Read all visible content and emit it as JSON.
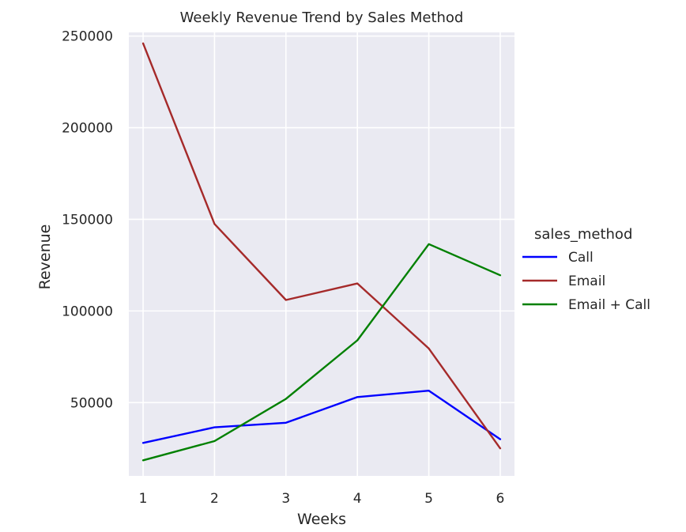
{
  "chart_data": {
    "type": "line",
    "title": "Weekly Revenue Trend by Sales Method",
    "xlabel": "Weeks",
    "ylabel": "Revenue",
    "x": [
      1,
      2,
      3,
      4,
      5,
      6
    ],
    "xlim": [
      0.8,
      6.2
    ],
    "ylim": [
      10000,
      252000
    ],
    "yticks": [
      50000,
      100000,
      150000,
      200000,
      250000
    ],
    "grid": true,
    "legend": {
      "title": "sales_method",
      "placement": "right"
    },
    "series": [
      {
        "name": "Call",
        "color": "#0000ff",
        "values": [
          28000,
          36500,
          39000,
          53000,
          56500,
          30000
        ]
      },
      {
        "name": "Email",
        "color": "#a52a2a",
        "values": [
          246000,
          147500,
          106000,
          115000,
          79500,
          25000
        ]
      },
      {
        "name": "Email + Call",
        "color": "#008000",
        "values": [
          18500,
          29000,
          52000,
          84000,
          136500,
          119500
        ]
      }
    ]
  }
}
